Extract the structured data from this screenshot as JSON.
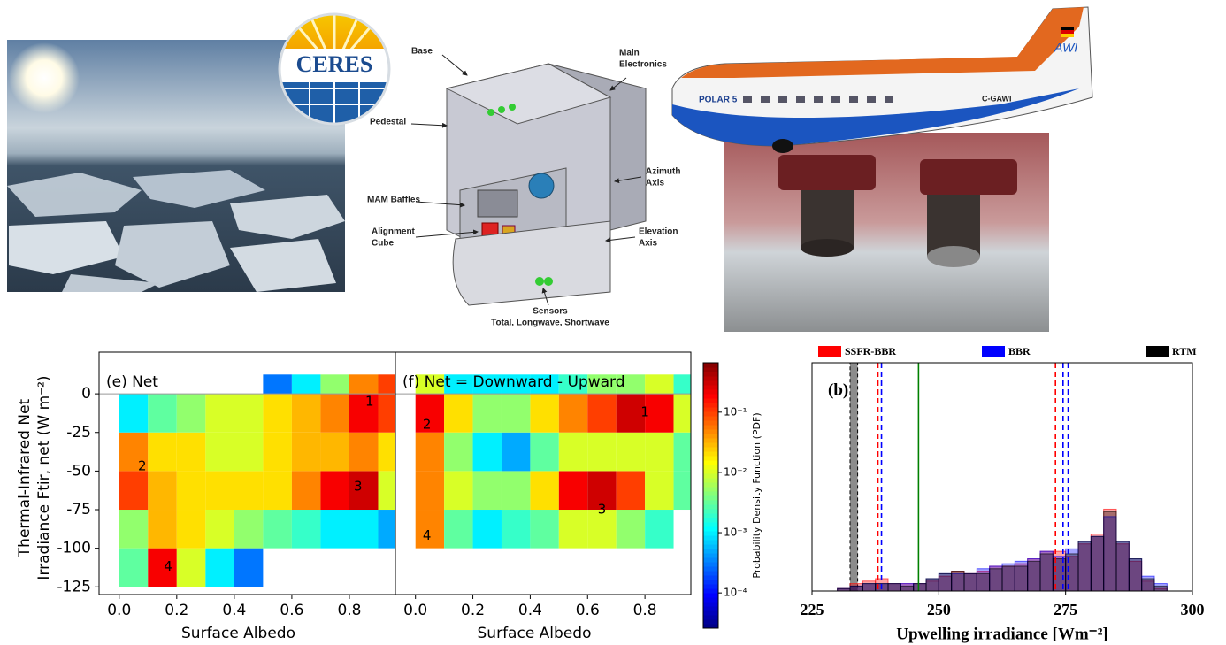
{
  "figures": {
    "logo": "CERES",
    "instrument": [
      {
        "lines": [
          "Base"
        ]
      },
      {
        "lines": [
          "Main",
          "Electronics"
        ]
      },
      {
        "lines": [
          "Pedestal"
        ]
      },
      {
        "lines": [
          "Azimuth",
          "Axis"
        ]
      },
      {
        "lines": [
          "MAM Baffles"
        ]
      },
      {
        "lines": [
          "Alignment",
          "Cube"
        ]
      },
      {
        "lines": [
          "Elevation",
          "Axis"
        ]
      },
      {
        "lines": [
          "Sensors",
          "Total, Longwave, Shortwave"
        ]
      }
    ],
    "aircraft": [
      "POLAR 5",
      "C-GAWI",
      "AWI"
    ]
  },
  "chart_data": [
    {
      "type": "heatmap",
      "title": "(e) Net",
      "xlabel": "Surface Albedo",
      "ylabel": [
        "Thermal-Infrared Net",
        "Irradiance Ftir, net (W m⁻²)"
      ],
      "xlim": [
        -0.07,
        0.96
      ],
      "ylim": [
        -130,
        27
      ],
      "xticks": [
        {
          "value": 0,
          "label": "0.0"
        },
        {
          "value": 0.2,
          "label": "0.2"
        },
        {
          "value": 0.4,
          "label": "0.4"
        },
        {
          "value": 0.6,
          "label": "0.6"
        },
        {
          "value": 0.8,
          "label": "0.8"
        }
      ],
      "yticks": [
        0,
        -25,
        -50,
        -75,
        -100,
        -125
      ],
      "hline": 0,
      "xbins": [
        0,
        0.1,
        0.2,
        0.3,
        0.4,
        0.5,
        0.6,
        0.7,
        0.8,
        0.9,
        1.0
      ],
      "ybins": [
        -125,
        -100,
        -75,
        -50,
        -25,
        0,
        12.5
      ],
      "values": [
        [
          0.003,
          0.2,
          0.01,
          0.001,
          0.0003,
          null,
          null,
          null,
          null,
          null
        ],
        [
          0.005,
          0.03,
          0.02,
          0.01,
          0.005,
          0.003,
          0.002,
          0.001,
          0.001,
          0.0005
        ],
        [
          0.1,
          0.03,
          0.02,
          0.02,
          0.02,
          0.02,
          0.05,
          0.2,
          0.3,
          0.01
        ],
        [
          0.05,
          0.02,
          0.02,
          0.01,
          0.01,
          0.02,
          0.03,
          0.03,
          0.05,
          0.02
        ],
        [
          0.001,
          0.003,
          0.005,
          0.01,
          0.01,
          0.02,
          0.03,
          0.05,
          0.2,
          0.1
        ],
        [
          null,
          null,
          null,
          null,
          null,
          0.0003,
          0.001,
          0.005,
          0.05,
          0.1
        ]
      ],
      "annotations": [
        {
          "text": "1",
          "x": 0.87,
          "y": -5
        },
        {
          "text": "2",
          "x": 0.08,
          "y": -47
        },
        {
          "text": "3",
          "x": 0.83,
          "y": -60
        },
        {
          "text": "4",
          "x": 0.17,
          "y": -112
        }
      ]
    },
    {
      "type": "heatmap",
      "title": "(f) Net = Downward - Upward",
      "xlabel": "Surface Albedo",
      "xlim": [
        -0.07,
        0.96
      ],
      "ylim": [
        -130,
        27
      ],
      "xticks": [
        {
          "value": 0,
          "label": "0.0"
        },
        {
          "value": 0.2,
          "label": "0.2"
        },
        {
          "value": 0.4,
          "label": "0.4"
        },
        {
          "value": 0.6,
          "label": "0.6"
        },
        {
          "value": 0.8,
          "label": "0.8"
        }
      ],
      "hline": 0,
      "xbins": [
        0,
        0.1,
        0.2,
        0.3,
        0.4,
        0.5,
        0.6,
        0.7,
        0.8,
        0.9,
        1.0
      ],
      "ybins": [
        -125,
        -100,
        -75,
        -50,
        -25,
        0,
        12.5
      ],
      "values": [
        [
          null,
          null,
          null,
          null,
          null,
          null,
          null,
          null,
          null,
          null
        ],
        [
          0.05,
          0.003,
          0.001,
          0.002,
          0.003,
          0.01,
          0.01,
          0.005,
          0.002,
          null
        ],
        [
          0.05,
          0.01,
          0.005,
          0.005,
          0.02,
          0.2,
          0.3,
          0.1,
          0.01,
          0.003
        ],
        [
          0.05,
          0.005,
          0.001,
          0.0005,
          0.003,
          0.01,
          0.01,
          0.01,
          0.01,
          0.003
        ],
        [
          0.2,
          0.02,
          0.005,
          0.005,
          0.02,
          0.05,
          0.1,
          0.3,
          0.2,
          0.01
        ],
        [
          0.01,
          0.001,
          0.001,
          0.001,
          0.001,
          0.002,
          0.005,
          0.005,
          0.01,
          0.002
        ]
      ],
      "annotations": [
        {
          "text": "1",
          "x": 0.8,
          "y": -12
        },
        {
          "text": "2",
          "x": 0.04,
          "y": -20
        },
        {
          "text": "3",
          "x": 0.65,
          "y": -75
        },
        {
          "text": "4",
          "x": 0.04,
          "y": -92
        }
      ],
      "colorbar": {
        "label": "Probability Density Function (PDF)",
        "log": true,
        "lim": [
          2.6e-05,
          0.66
        ],
        "ticks": [
          {
            "value": 0.0001,
            "label": "10⁻⁴"
          },
          {
            "value": 0.001,
            "label": "10⁻³"
          },
          {
            "value": 0.01,
            "label": "10⁻²"
          },
          {
            "value": 0.1,
            "label": "10⁻¹"
          }
        ]
      }
    },
    {
      "type": "histogram",
      "label": "(b)",
      "xlabel": "Upwelling irradiance [Wm⁻²]",
      "xlim": [
        225,
        300
      ],
      "ylim": [
        0,
        92
      ],
      "xticks": [
        225,
        250,
        275,
        300
      ],
      "bins": [
        230,
        232.5,
        235,
        237.5,
        240,
        242.5,
        245,
        247.5,
        250,
        252.5,
        255,
        257.5,
        260,
        262.5,
        265,
        267.5,
        270,
        272.5,
        275,
        277.5,
        280,
        282.5,
        285,
        287.5,
        290,
        292.5,
        295
      ],
      "series": [
        {
          "name": "SSFR-BBR",
          "color": "#ff0000",
          "values": [
            1,
            3,
            4,
            5,
            3,
            3,
            3,
            4,
            6,
            8,
            7,
            8,
            10,
            10,
            11,
            13,
            16,
            16,
            14,
            19,
            23,
            33,
            19,
            12,
            4,
            1
          ]
        },
        {
          "name": "BBR",
          "color": "#0000ff",
          "values": [
            1,
            2,
            3,
            3,
            3,
            3,
            3,
            5,
            7,
            7,
            7,
            9,
            10,
            11,
            12,
            13,
            16,
            14,
            17,
            20,
            22,
            30,
            20,
            13,
            6,
            3
          ]
        },
        {
          "name": "RTM",
          "color": "#000000",
          "values": [
            1,
            2,
            3,
            3,
            3,
            2,
            3,
            5,
            7,
            8,
            7,
            7,
            9,
            10,
            10,
            12,
            15,
            13,
            15,
            20,
            22,
            32,
            20,
            13,
            5,
            2
          ]
        }
      ],
      "vspan": {
        "from": 232.5,
        "to": 234,
        "color": "#8c8c8c"
      },
      "vlines": [
        {
          "value": 238,
          "color": "#ff0000",
          "style": "dashed"
        },
        {
          "value": 238.7,
          "color": "#0000ff",
          "style": "dashed"
        },
        {
          "value": 246,
          "color": "#008000",
          "style": "solid"
        },
        {
          "value": 273,
          "color": "#ff0000",
          "style": "dashed"
        },
        {
          "value": 274.5,
          "color": "#0000ff",
          "style": "dashed"
        },
        {
          "value": 275.5,
          "color": "#0000ff",
          "style": "dashed"
        }
      ]
    }
  ]
}
